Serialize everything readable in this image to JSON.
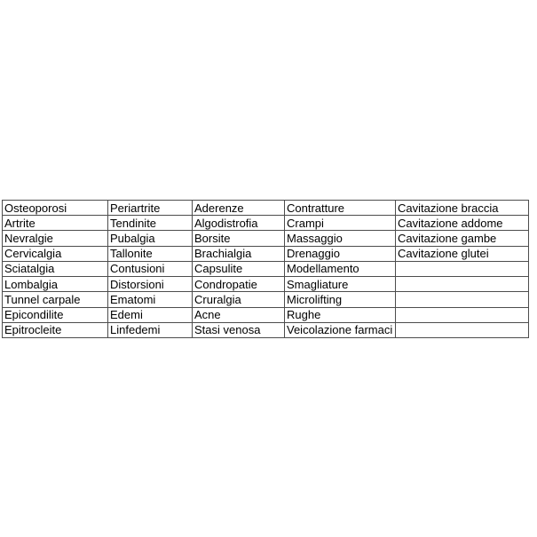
{
  "page": {
    "background_color": "#ffffff"
  },
  "table": {
    "border_color": "#4d4d4d",
    "text_color": "#000000",
    "rows": [
      [
        "Osteoporosi",
        "Periartrite",
        "Aderenze",
        "Contratture",
        "Cavitazione braccia"
      ],
      [
        "Artrite",
        "Tendinite",
        "Algodistrofia",
        "Crampi",
        "Cavitazione addome"
      ],
      [
        "Nevralgie",
        "Pubalgia",
        "Borsite",
        "Massaggio",
        "Cavitazione gambe"
      ],
      [
        "Cervicalgia",
        "Tallonite",
        "Brachialgia",
        "Drenaggio",
        "Cavitazione glutei"
      ],
      [
        "Sciatalgia",
        "Contusioni",
        "Capsulite",
        "Modellamento",
        ""
      ],
      [
        "Lombalgia",
        "Distorsioni",
        "Condropatie",
        "Smagliature",
        ""
      ],
      [
        "Tunnel carpale",
        "Ematomi",
        "Cruralgia",
        "Microlifting",
        ""
      ],
      [
        "Epicondilite",
        "Edemi",
        "Acne",
        "Rughe",
        ""
      ],
      [
        "Epitrocleite",
        "Linfedemi",
        "Stasi venosa",
        "Veicolazione farmaci",
        ""
      ]
    ]
  }
}
